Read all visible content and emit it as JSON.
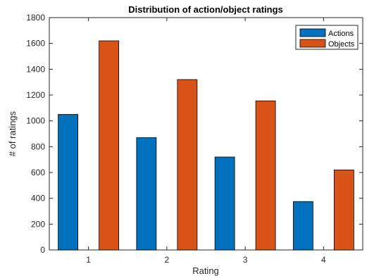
{
  "chart_data": {
    "type": "bar",
    "title": "Distribution of action/object ratings",
    "xlabel": "Rating",
    "ylabel": "# of ratings",
    "categories": [
      "1",
      "2",
      "3",
      "4"
    ],
    "ylim": [
      0,
      1800
    ],
    "yticks": [
      "0",
      "200",
      "400",
      "600",
      "800",
      "1000",
      "1200",
      "1400",
      "1600",
      "1800"
    ],
    "grid": false,
    "legend_position": "top-right",
    "series": [
      {
        "name": "Actions",
        "color": "#0072bd",
        "values": [
          1050,
          870,
          720,
          375
        ]
      },
      {
        "name": "Objects",
        "color": "#d95319",
        "values": [
          1620,
          1320,
          1155,
          620
        ]
      }
    ]
  }
}
